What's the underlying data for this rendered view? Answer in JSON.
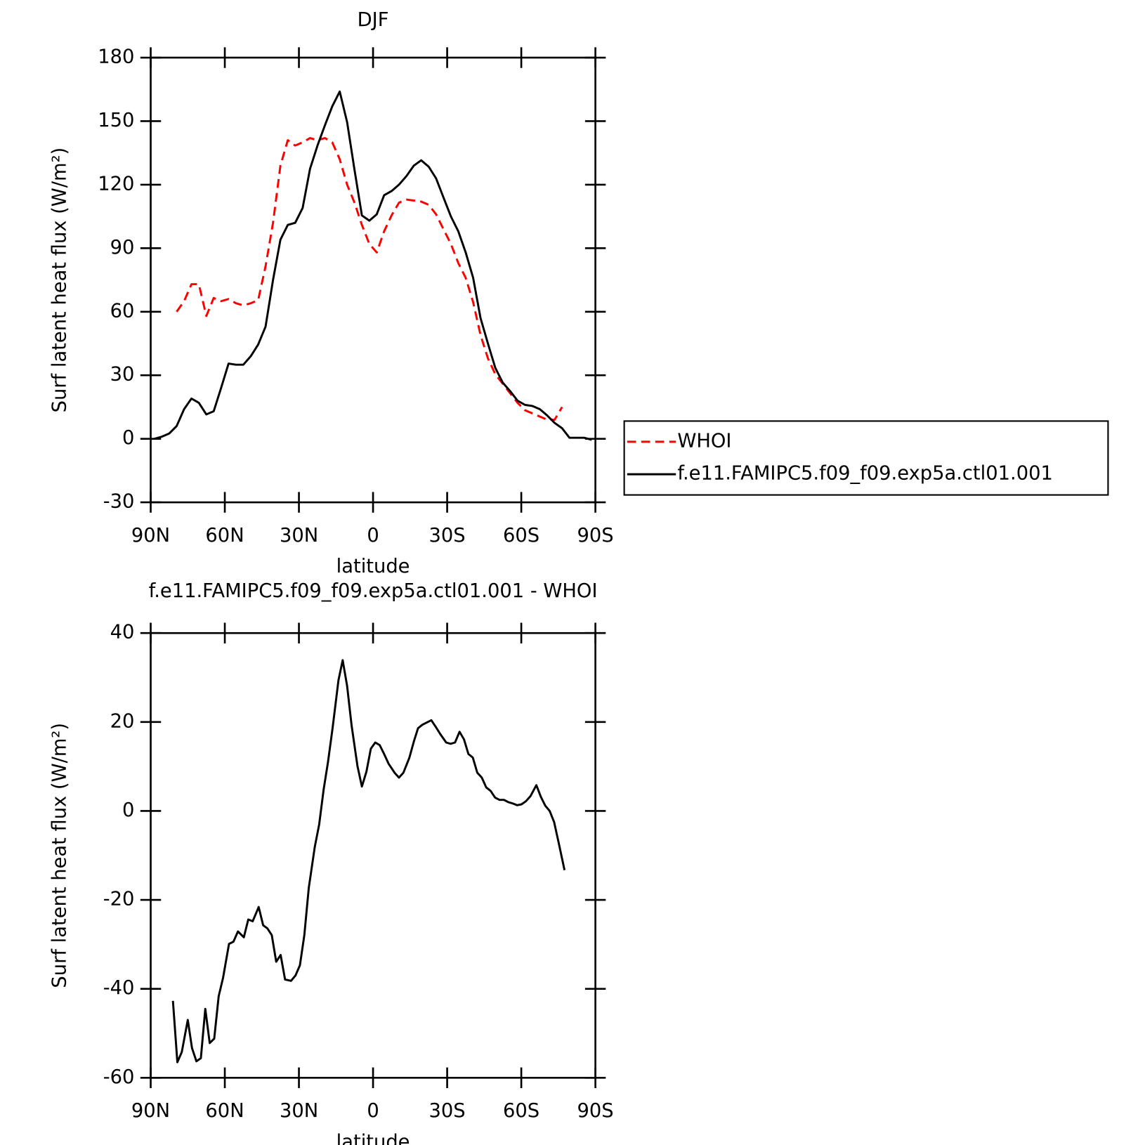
{
  "chart_data": [
    {
      "type": "line",
      "title": "DJF",
      "xlabel": "latitude",
      "ylabel": "Surf latent heat flux (W/m²)",
      "x": [
        88.5,
        85.5,
        82.5,
        79.5,
        76.5,
        73.5,
        70.5,
        67.5,
        64.5,
        61.5,
        58.5,
        55.5,
        52.5,
        49.5,
        46.5,
        43.5,
        40.5,
        37.5,
        34.5,
        31.5,
        28.5,
        25.5,
        22.5,
        19.5,
        16.5,
        13.5,
        10.5,
        7.5,
        4.5,
        1.5,
        -1.5,
        -4.5,
        -7.5,
        -10.5,
        -13.5,
        -16.5,
        -19.5,
        -22.5,
        -25.5,
        -28.5,
        -31.5,
        -34.5,
        -37.5,
        -40.5,
        -43.5,
        -46.5,
        -49.5,
        -52.5,
        -55.5,
        -58.5,
        -61.5,
        -64.5,
        -67.5,
        -70.5,
        -73.5,
        -76.5,
        -79.5,
        -82.5,
        -85.5,
        -88.5
      ],
      "series": [
        {
          "name": "WHOI",
          "color": "#ff0000",
          "dash": "dashed",
          "values": [
            null,
            null,
            null,
            60,
            65,
            73,
            73,
            58,
            66.5,
            65,
            66,
            64,
            63,
            64,
            65.5,
            81.5,
            102,
            129,
            141,
            138.5,
            140,
            142,
            141,
            142,
            140,
            132,
            120,
            111.5,
            101,
            92,
            88,
            98,
            105.5,
            111.5,
            113,
            112.5,
            112,
            110.5,
            106,
            99,
            92,
            83,
            76,
            64.5,
            49,
            38,
            30.5,
            26,
            21.5,
            17,
            13.5,
            12,
            10.5,
            9,
            9,
            15,
            null,
            null,
            null,
            null
          ]
        },
        {
          "name": "f.e11.FAMIPC5.f09_f09.exp5a.ctl01.001",
          "color": "#000000",
          "dash": "solid",
          "values": [
            0,
            1,
            2.5,
            6,
            14,
            19,
            17,
            11.5,
            13,
            24,
            35.5,
            35,
            35,
            39,
            44.5,
            53,
            75,
            94,
            101,
            102,
            109,
            127.5,
            138.5,
            148,
            157,
            164,
            149.5,
            127,
            105.5,
            103,
            106,
            115,
            117,
            120,
            124,
            129,
            131.5,
            128.5,
            123,
            114,
            105,
            98,
            88,
            76,
            57,
            45,
            33.5,
            26.5,
            22.5,
            18,
            16,
            15.5,
            14,
            11,
            7.5,
            5,
            0.5,
            0.5,
            0.5,
            -0.5
          ]
        }
      ],
      "xlim": [
        90,
        -90
      ],
      "ylim": [
        -30,
        180
      ],
      "xticks": [
        {
          "value": 90,
          "label": "90N"
        },
        {
          "value": 60,
          "label": "60N"
        },
        {
          "value": 30,
          "label": "30N"
        },
        0,
        {
          "value": -30,
          "label": "30S"
        },
        {
          "value": -60,
          "label": "60S"
        },
        {
          "value": -90,
          "label": "90S"
        }
      ],
      "yticks": [
        -30,
        0,
        30,
        60,
        90,
        120,
        150,
        180
      ],
      "legend": "right"
    },
    {
      "type": "line",
      "title": "f.e11.FAMIPC5.f09_f09.exp5a.ctl01.001 - WHOI",
      "xlabel": "latitude",
      "ylabel": "Surf latent heat flux (W/m²)",
      "x": [
        81,
        79.2,
        77.4,
        75,
        73.3,
        71.5,
        69.7,
        67.9,
        66.1,
        64.3,
        62.5,
        60.7,
        58.3,
        56.5,
        54.7,
        52.3,
        50.5,
        48.7,
        46.3,
        44.5,
        42.8,
        41,
        39.2,
        37.4,
        35.6,
        33.2,
        31.4,
        29.6,
        27.8,
        26,
        23.6,
        21.8,
        20,
        18.2,
        16.4,
        14,
        12.3,
        10.5,
        8.7,
        6.3,
        4.5,
        2.7,
        0.9,
        -0.9,
        -2.7,
        -4.5,
        -6.3,
        -8.7,
        -10.5,
        -12.3,
        -14.7,
        -16.5,
        -18.2,
        -20,
        -21.8,
        -23.6,
        -25.4,
        -27.2,
        -29.6,
        -31.4,
        -33.2,
        -35,
        -36.8,
        -38.6,
        -40.4,
        -42.2,
        -44,
        -45.8,
        -47.6,
        -49.4,
        -51.2,
        -53,
        -54.7,
        -56.5,
        -58.3,
        -60.1,
        -61.9,
        -63.7,
        -66.1,
        -67.9,
        -69.7,
        -71.5,
        -73.3,
        -75.1,
        -77.5
      ],
      "values": [
        -42.7,
        -56.5,
        -54.2,
        -47,
        -53.3,
        -56.3,
        -55.6,
        -44.5,
        -52.2,
        -51.2,
        -41.7,
        -37.5,
        -29.9,
        -29.4,
        -27.1,
        -28.4,
        -24.4,
        -24.8,
        -21.6,
        -25.7,
        -26.4,
        -27.9,
        -33.9,
        -32.4,
        -37.9,
        -38.2,
        -37,
        -34.7,
        -27.9,
        -17.3,
        -8.1,
        -3,
        4.8,
        11.1,
        18.6,
        29.4,
        33.9,
        28.1,
        19.3,
        10.1,
        5.5,
        8.8,
        14,
        15.4,
        14.8,
        12.8,
        10.6,
        8.6,
        7.5,
        8.6,
        12,
        15.6,
        18.6,
        19.4,
        19.9,
        20.4,
        18.9,
        17.3,
        15.4,
        15.1,
        15.4,
        17.8,
        16.1,
        12.8,
        12,
        8.6,
        7.5,
        5.3,
        4.5,
        3,
        2.5,
        2.5,
        2,
        1.7,
        1.3,
        1.5,
        2.2,
        3.3,
        5.8,
        3.2,
        1.2,
        0,
        -2.5,
        -7.1,
        -13.3
      ],
      "color": "#000000",
      "xlim": [
        90,
        -90
      ],
      "ylim": [
        -60,
        40
      ],
      "xticks": [
        {
          "value": 90,
          "label": "90N"
        },
        {
          "value": 60,
          "label": "60N"
        },
        {
          "value": 30,
          "label": "30N"
        },
        0,
        {
          "value": -30,
          "label": "30S"
        },
        {
          "value": -60,
          "label": "60S"
        },
        {
          "value": -90,
          "label": "90S"
        }
      ],
      "yticks": [
        -60,
        -40,
        -20,
        0,
        20,
        40
      ]
    }
  ]
}
